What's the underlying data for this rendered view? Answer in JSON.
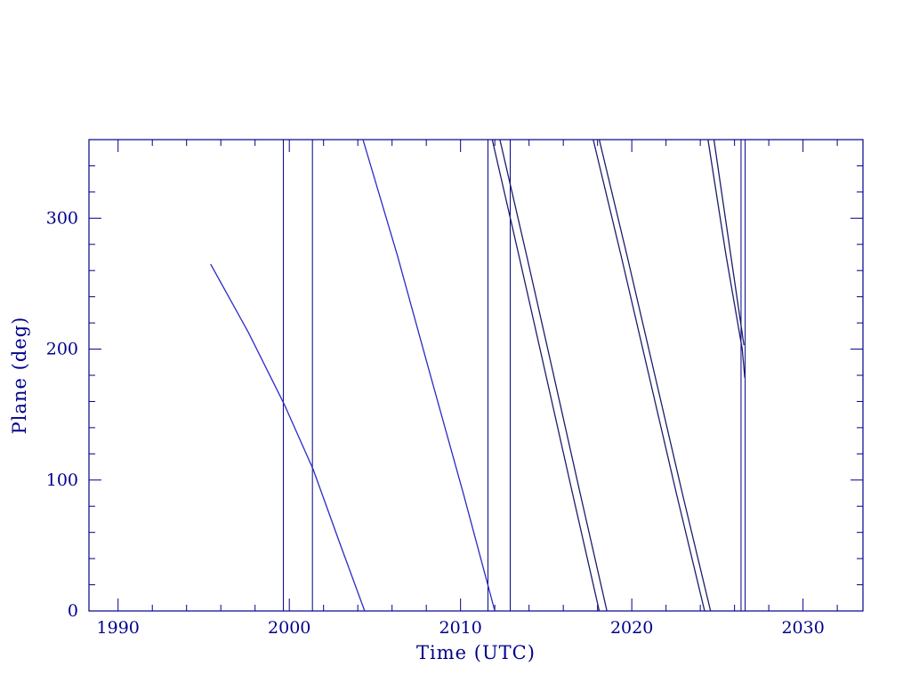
{
  "chart_data": {
    "type": "line",
    "title": "",
    "xlabel": "Time (UTC)",
    "ylabel": "Plane (deg)",
    "xlim": [
      1988.3,
      2033.5
    ],
    "ylim": [
      0,
      360
    ],
    "x_major_ticks": [
      1990,
      2000,
      2010,
      2020,
      2030
    ],
    "x_tick_labels": [
      "1990",
      "2000",
      "2010",
      "2020",
      "2030"
    ],
    "x_minor_step": 2,
    "y_major_ticks": [
      0,
      100,
      200,
      300
    ],
    "y_tick_labels": [
      "0",
      "100",
      "200",
      "300"
    ],
    "y_minor_step": 20,
    "grid": false,
    "legend": "none",
    "axis_color": "#00008b",
    "line_color": "#2323b8",
    "pair_line_color": "#1c1c6e",
    "vline_color": "#00008b",
    "vlines": [
      1999.65,
      2001.35,
      2011.6,
      2012.9,
      2026.38,
      2026.62
    ],
    "series": [
      {
        "name": "plane-wrap-1",
        "color": "#2a2ac4",
        "points": [
          [
            1995.4,
            265
          ],
          [
            1997.6,
            213
          ],
          [
            1999.7,
            158
          ],
          [
            2001.4,
            108
          ],
          [
            2003.0,
            50
          ],
          [
            2004.4,
            0
          ]
        ]
      },
      {
        "name": "plane-wrap-2",
        "color": "#2a2ac4",
        "points": [
          [
            2004.3,
            360
          ],
          [
            2006.3,
            272
          ],
          [
            2008.2,
            182
          ],
          [
            2010.2,
            88
          ],
          [
            2012.0,
            0
          ]
        ]
      },
      {
        "name": "plane-wrap-3a",
        "color": "#1c1c6e",
        "points": [
          [
            2011.85,
            360
          ],
          [
            2013.4,
            272
          ],
          [
            2014.9,
            185
          ],
          [
            2016.5,
            92
          ],
          [
            2018.1,
            0
          ]
        ]
      },
      {
        "name": "plane-wrap-3b",
        "color": "#1c1c6e",
        "points": [
          [
            2012.3,
            360
          ],
          [
            2013.85,
            272
          ],
          [
            2015.35,
            185
          ],
          [
            2016.95,
            92
          ],
          [
            2018.55,
            0
          ]
        ]
      },
      {
        "name": "plane-wrap-4a",
        "color": "#1c1c6e",
        "points": [
          [
            2017.75,
            360
          ],
          [
            2019.4,
            270
          ],
          [
            2021.0,
            180
          ],
          [
            2022.6,
            90
          ],
          [
            2024.25,
            0
          ]
        ]
      },
      {
        "name": "plane-wrap-4b",
        "color": "#1c1c6e",
        "points": [
          [
            2018.1,
            360
          ],
          [
            2019.75,
            270
          ],
          [
            2021.35,
            180
          ],
          [
            2022.95,
            90
          ],
          [
            2024.6,
            0
          ]
        ]
      },
      {
        "name": "plane-wrap-5a",
        "color": "#1c1c6e",
        "points": [
          [
            2024.45,
            360
          ],
          [
            2025.5,
            272
          ],
          [
            2026.45,
            200
          ],
          [
            2026.6,
            178
          ]
        ]
      },
      {
        "name": "plane-wrap-5b",
        "color": "#1c1c6e",
        "points": [
          [
            2024.8,
            360
          ],
          [
            2025.8,
            270
          ],
          [
            2026.55,
            203
          ]
        ]
      }
    ]
  }
}
